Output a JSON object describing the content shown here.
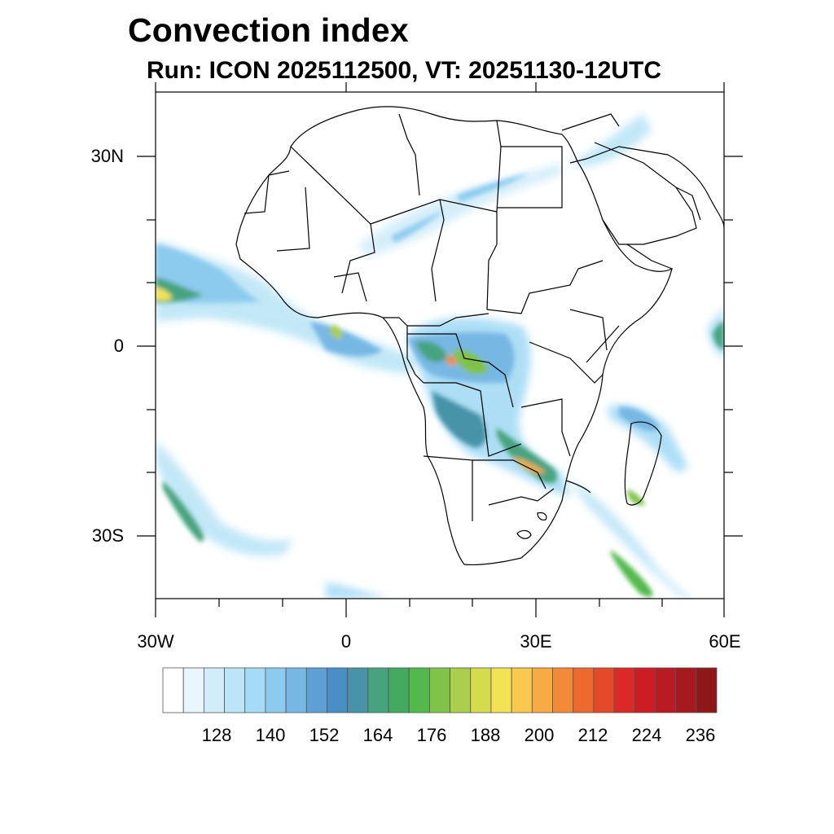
{
  "title": "Convection index",
  "subtitle": "Run: ICON 2025112500,  VT: 20251130-12UTC",
  "map": {
    "lon_range": [
      -30,
      60
    ],
    "lat_range": [
      -40,
      40
    ],
    "lat_tick_labels": [
      "30N",
      "0",
      "30S"
    ],
    "lon_tick_labels": [
      "30W",
      "0",
      "30E",
      "60E"
    ]
  },
  "colorbar": {
    "labels": [
      "128",
      "140",
      "152",
      "164",
      "176",
      "188",
      "200",
      "212",
      "224",
      "236"
    ],
    "colors": [
      "#ffffff",
      "#eaf6fd",
      "#d2edfa",
      "#bce5f7",
      "#a5dbf5",
      "#8ccbee",
      "#77b7e4",
      "#5e9fd4",
      "#4a8ec6",
      "#4793a8",
      "#47a37f",
      "#43aa5f",
      "#52b94d",
      "#80c24a",
      "#a9cf4d",
      "#d4dc4e",
      "#f1e354",
      "#f8c94d",
      "#f6ab44",
      "#f28b38",
      "#ec6a2e",
      "#e44a28",
      "#db2a25",
      "#cc1d25",
      "#b91b24",
      "#a6191f",
      "#8e1719"
    ]
  }
}
